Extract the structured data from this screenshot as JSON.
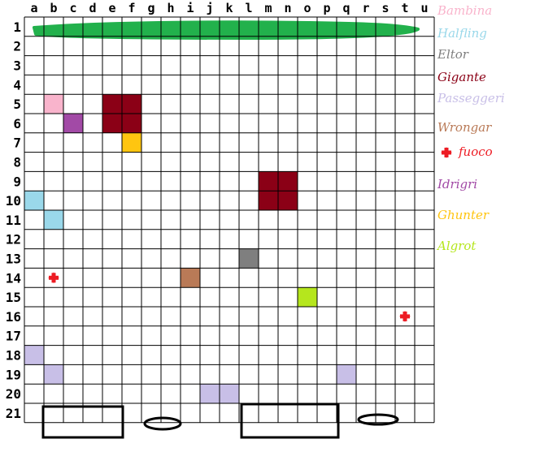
{
  "columns": [
    "a",
    "b",
    "c",
    "d",
    "e",
    "f",
    "g",
    "h",
    "i",
    "j",
    "k",
    "l",
    "m",
    "n",
    "o",
    "p",
    "q",
    "r",
    "s",
    "t",
    "u"
  ],
  "rows": [
    "1",
    "2",
    "3",
    "4",
    "5",
    "6",
    "7",
    "8",
    "9",
    "10",
    "11",
    "12",
    "13",
    "14",
    "15",
    "16",
    "17",
    "18",
    "19",
    "20",
    "21"
  ],
  "cells": [
    {
      "col": "b",
      "row": "5",
      "type": "Bambina",
      "color": "#f9b4cc"
    },
    {
      "col": "c",
      "row": "6",
      "type": "Idrigri",
      "color": "#a24aa6"
    },
    {
      "col": "e",
      "row": "5",
      "type": "Gigante",
      "color": "#8b0016"
    },
    {
      "col": "f",
      "row": "5",
      "type": "Gigante",
      "color": "#8b0016"
    },
    {
      "col": "e",
      "row": "6",
      "type": "Gigante",
      "color": "#8b0016"
    },
    {
      "col": "f",
      "row": "6",
      "type": "Gigante",
      "color": "#8b0016"
    },
    {
      "col": "f",
      "row": "7",
      "type": "Ghunter",
      "color": "#ffc510"
    },
    {
      "col": "m",
      "row": "9",
      "type": "Gigante",
      "color": "#8b0016"
    },
    {
      "col": "n",
      "row": "9",
      "type": "Gigante",
      "color": "#8b0016"
    },
    {
      "col": "m",
      "row": "10",
      "type": "Gigante",
      "color": "#8b0016"
    },
    {
      "col": "n",
      "row": "10",
      "type": "Gigante",
      "color": "#8b0016"
    },
    {
      "col": "a",
      "row": "10",
      "type": "Halfling",
      "color": "#9ad8ea"
    },
    {
      "col": "b",
      "row": "11",
      "type": "Halfling",
      "color": "#9ad8ea"
    },
    {
      "col": "l",
      "row": "13",
      "type": "Eltor",
      "color": "#7f7f7f"
    },
    {
      "col": "i",
      "row": "14",
      "type": "Wrongar",
      "color": "#b97a57"
    },
    {
      "col": "o",
      "row": "15",
      "type": "Algrot",
      "color": "#b5e61d"
    },
    {
      "col": "a",
      "row": "18",
      "type": "Passeggeri",
      "color": "#c8bfe7"
    },
    {
      "col": "b",
      "row": "19",
      "type": "Passeggeri",
      "color": "#c8bfe7"
    },
    {
      "col": "q",
      "row": "19",
      "type": "Passeggeri",
      "color": "#c8bfe7"
    },
    {
      "col": "j",
      "row": "20",
      "type": "Passeggeri",
      "color": "#c8bfe7"
    },
    {
      "col": "k",
      "row": "20",
      "type": "Passeggeri",
      "color": "#c8bfe7"
    }
  ],
  "fires": [
    {
      "col": "b",
      "row": "14"
    },
    {
      "col": "t",
      "row": "16"
    }
  ],
  "fire_color": "#ed1c24",
  "row1_scribble_color": "#22b14c",
  "legend": [
    {
      "label": "Bambina",
      "color": "#f9b4cc"
    },
    {
      "label": "Halfling",
      "color": "#9ad8ea"
    },
    {
      "label": "Eltor",
      "color": "#7f7f7f"
    },
    {
      "label": "Gigante",
      "color": "#8b0016"
    },
    {
      "label": "Passeggeri",
      "color": "#c8bfe7"
    },
    {
      "label": "Wrongar",
      "color": "#b97a57"
    },
    {
      "label": "fuoco",
      "color": "#ed1c24",
      "icon": "fire-icon"
    },
    {
      "label": "Idrigri",
      "color": "#a24aa6"
    },
    {
      "label": "Ghunter",
      "color": "#ffc510"
    },
    {
      "label": "Algrot",
      "color": "#b5e61d"
    }
  ]
}
